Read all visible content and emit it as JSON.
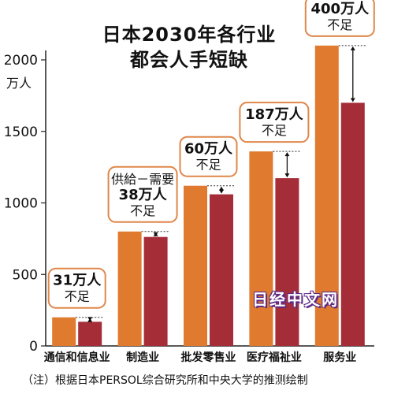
{
  "title_line1": "日本2030年各行业",
  "title_line2": "都会人手短缺",
  "y_unit_label": "万人",
  "note": "（注）根据日本PERSOL综合研究所和中央大学的推测绘制",
  "watermark": "日经中文网",
  "colors": {
    "supply": "#e07a2e",
    "demand": "#a52d38",
    "callout_border": "#e0874a",
    "axis": "#222222"
  },
  "chart_data": {
    "type": "bar",
    "title": "日本2030年各行业都会人手短缺",
    "ylabel": "万人",
    "ylim": [
      0,
      2000
    ],
    "yticks": [
      0,
      500,
      1000,
      1500,
      2000
    ],
    "categories": [
      "通信和信息业",
      "制造业",
      "批发零售业",
      "医疗福祉业",
      "服务业"
    ],
    "series": [
      {
        "values": [
          200,
          800,
          1120,
          1360,
          2100
        ]
      },
      {
        "values": [
          169,
          762,
          1060,
          1173,
          1700
        ]
      }
    ],
    "annotations": [
      {
        "lines": [
          "31万人",
          "不足"
        ]
      },
      {
        "lines": [
          "供給－需要",
          "38万人",
          "不足"
        ]
      },
      {
        "lines": [
          "60万人",
          "不足"
        ]
      },
      {
        "lines": [
          "187万人",
          "不足"
        ]
      },
      {
        "lines": [
          "400万人",
          "不足"
        ]
      }
    ]
  }
}
